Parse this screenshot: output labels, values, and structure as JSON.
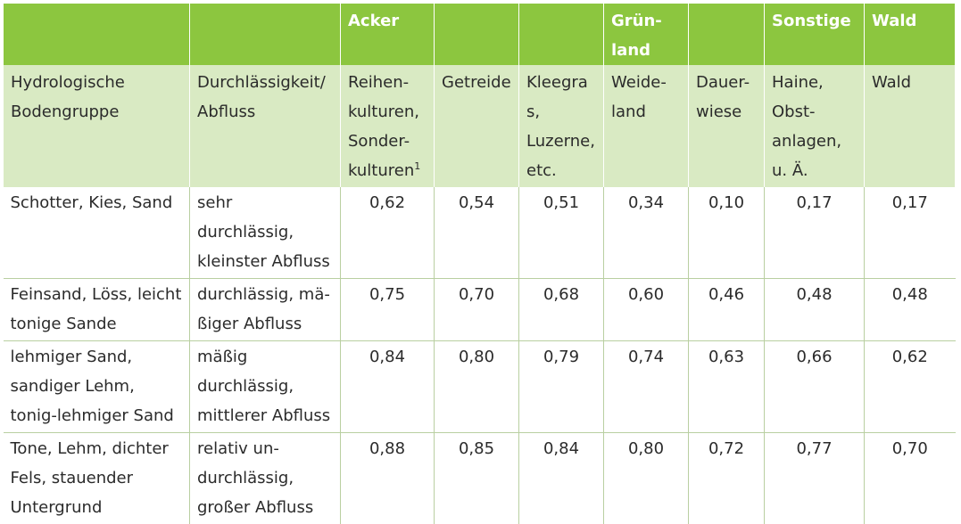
{
  "group_header": {
    "acker": "Acker",
    "gruenland": "Grün-\nland",
    "sonstige": "Sonstige",
    "wald": "Wald"
  },
  "columns": {
    "bodengruppe": "Hydrologische\nBodengruppe",
    "durchlaessigkeit": "Durchlässigkeit/\nAbfluss",
    "reihenkulturen": "Reihen-\nkulturen,\nSonder-\nkulturen",
    "reihenkulturen_footnote": "1",
    "getreide": "Getreide",
    "kleegras": "Kleegras,\nLuzerne,\netc.",
    "weideland": "Weide-\nland",
    "dauerwiese": "Dauer-\nwiese",
    "haine": "Haine,\nObst-\nanlagen,\nu. Ä.",
    "wald": "Wald"
  },
  "rows": [
    {
      "bodengruppe": "Schotter, Kies, Sand",
      "durchlaessigkeit": "sehr durchlässig,\nkleinster Abfluss",
      "values": [
        "0,62",
        "0,54",
        "0,51",
        "0,34",
        "0,10",
        "0,17",
        "0,17"
      ]
    },
    {
      "bodengruppe": "Feinsand, Löss, leicht\ntonige Sande",
      "durchlaessigkeit": "durchlässig, mä-\nßiger Abfluss",
      "values": [
        "0,75",
        "0,70",
        "0,68",
        "0,60",
        "0,46",
        "0,48",
        "0,48"
      ]
    },
    {
      "bodengruppe": "lehmiger Sand,\nsandiger Lehm,\ntonig-lehmiger Sand",
      "durchlaessigkeit": "mäßig\ndurchlässig,\nmittlerer Abfluss",
      "values": [
        "0,84",
        "0,80",
        "0,79",
        "0,74",
        "0,63",
        "0,66",
        "0,62"
      ]
    },
    {
      "bodengruppe": "Tone, Lehm, dichter\nFels, stauender\nUntergrund",
      "durchlaessigkeit": "relativ un-\ndurchlässig,\ngroßer Abfluss",
      "values": [
        "0,88",
        "0,85",
        "0,84",
        "0,80",
        "0,72",
        "0,77",
        "0,70"
      ]
    }
  ],
  "colors": {
    "header_green": "#8cc63f",
    "subheader_green": "#d9eac3",
    "divider": "#b9cfa1"
  }
}
